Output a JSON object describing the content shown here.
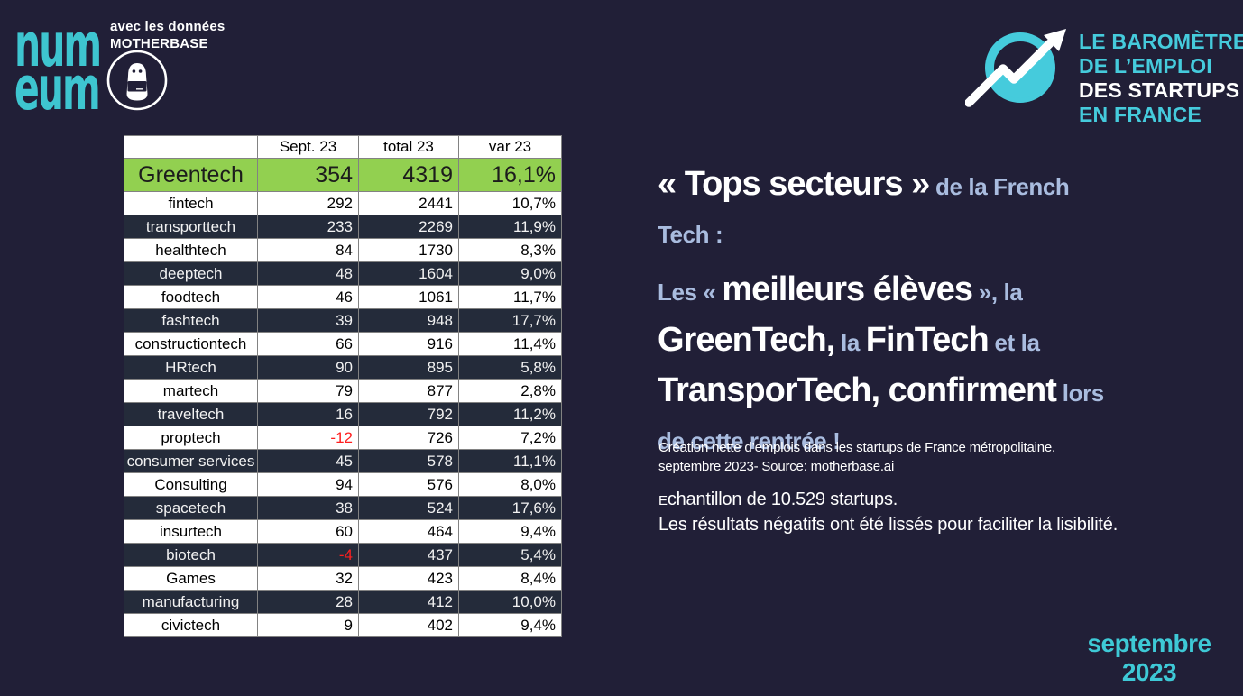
{
  "brand": {
    "numeum_line1": "num",
    "numeum_line2": "eum",
    "credit_line1": "avec les données",
    "credit_line2": "MOTHERBASE",
    "icons": {
      "motherbase": "ghost-mascot-in-circle-icon",
      "barometre": "trend-arrow-circle-icon"
    }
  },
  "barometre": {
    "lines": [
      {
        "text": "LE BAROMÈTRE",
        "color": "cyan"
      },
      {
        "text": "DE L’EMPLOI",
        "color": "cyan"
      },
      {
        "text": "DES STARTUPS",
        "color": "white"
      },
      {
        "text": "EN FRANCE",
        "color": "cyan"
      }
    ]
  },
  "table": {
    "headers": [
      "",
      "Sept. 23",
      "total 23",
      "var 23"
    ],
    "rows": [
      {
        "label": "Greentech",
        "sept": "354",
        "total": "4319",
        "var": "16,1%",
        "style": "green"
      },
      {
        "label": "fintech",
        "sept": "292",
        "total": "2441",
        "var": "10,7%",
        "style": "light"
      },
      {
        "label": "transporttech",
        "sept": "233",
        "total": "2269",
        "var": "11,9%",
        "style": "dark"
      },
      {
        "label": "healthtech",
        "sept": "84",
        "total": "1730",
        "var": "8,3%",
        "style": "light"
      },
      {
        "label": "deeptech",
        "sept": "48",
        "total": "1604",
        "var": "9,0%",
        "style": "dark"
      },
      {
        "label": "foodtech",
        "sept": "46",
        "total": "1061",
        "var": "11,7%",
        "style": "light"
      },
      {
        "label": "fashtech",
        "sept": "39",
        "total": "948",
        "var": "17,7%",
        "style": "dark"
      },
      {
        "label": "constructiontech",
        "sept": "66",
        "total": "916",
        "var": "11,4%",
        "style": "light"
      },
      {
        "label": "HRtech",
        "sept": "90",
        "total": "895",
        "var": "5,8%",
        "style": "dark"
      },
      {
        "label": "martech",
        "sept": "79",
        "total": "877",
        "var": "2,8%",
        "style": "light"
      },
      {
        "label": "traveltech",
        "sept": "16",
        "total": "792",
        "var": "11,2%",
        "style": "dark"
      },
      {
        "label": "proptech",
        "sept": "-12",
        "total": "726",
        "var": "7,2%",
        "style": "light"
      },
      {
        "label": "consumer services",
        "sept": "45",
        "total": "578",
        "var": "11,1%",
        "style": "dark"
      },
      {
        "label": "Consulting",
        "sept": "94",
        "total": "576",
        "var": "8,0%",
        "style": "light"
      },
      {
        "label": "spacetech",
        "sept": "38",
        "total": "524",
        "var": "17,6%",
        "style": "dark"
      },
      {
        "label": "insurtech",
        "sept": "60",
        "total": "464",
        "var": "9,4%",
        "style": "light"
      },
      {
        "label": "biotech",
        "sept": "-4",
        "total": "437",
        "var": "5,4%",
        "style": "dark"
      },
      {
        "label": "Games",
        "sept": "32",
        "total": "423",
        "var": "8,4%",
        "style": "light"
      },
      {
        "label": "manufacturing",
        "sept": "28",
        "total": "412",
        "var": "10,0%",
        "style": "dark"
      },
      {
        "label": "civictech",
        "sept": "9",
        "total": "402",
        "var": "9,4%",
        "style": "light"
      }
    ]
  },
  "headline": {
    "para1": [
      {
        "text": "« Tops secteurs »",
        "style": "big"
      },
      {
        "text": " de la French",
        "style": "small"
      },
      {
        "br": true
      },
      {
        "text": "Tech :",
        "style": "small"
      }
    ],
    "para2": [
      {
        "text": "Les « ",
        "style": "small"
      },
      {
        "text": "meilleurs élèves",
        "style": "big"
      },
      {
        "text": " », la",
        "style": "small"
      },
      {
        "br": true
      },
      {
        "text": "GreenTech,",
        "style": "big"
      },
      {
        "text": " la ",
        "style": "small"
      },
      {
        "text": "FinTech",
        "style": "big"
      },
      {
        "text": " et la",
        "style": "small"
      },
      {
        "br": true
      },
      {
        "text": "TransporTech, confirment",
        "style": "big"
      },
      {
        "text": " lors",
        "style": "small"
      },
      {
        "br": true
      },
      {
        "text": "de cette rentrée !",
        "style": "small"
      }
    ]
  },
  "credits": {
    "line1": "Création nette d’emplois dans les startups de France métropolitaine.",
    "line2": "septembre 2023- Source: motherbase.ai"
  },
  "note": {
    "line1": "Echantillon de 10.529 startups.",
    "line2": "Les résultats négatifs ont été lissés pour faciliter la lisibilité."
  },
  "date": {
    "line1": "septembre",
    "line2": "2023"
  },
  "colors": {
    "background": "#211F37",
    "teal": "#3EC9D6",
    "light_blue": "#A9BCDF",
    "green_row": "#92D050",
    "dark_row": "#242B3A",
    "negative": "#FF1F1F"
  }
}
